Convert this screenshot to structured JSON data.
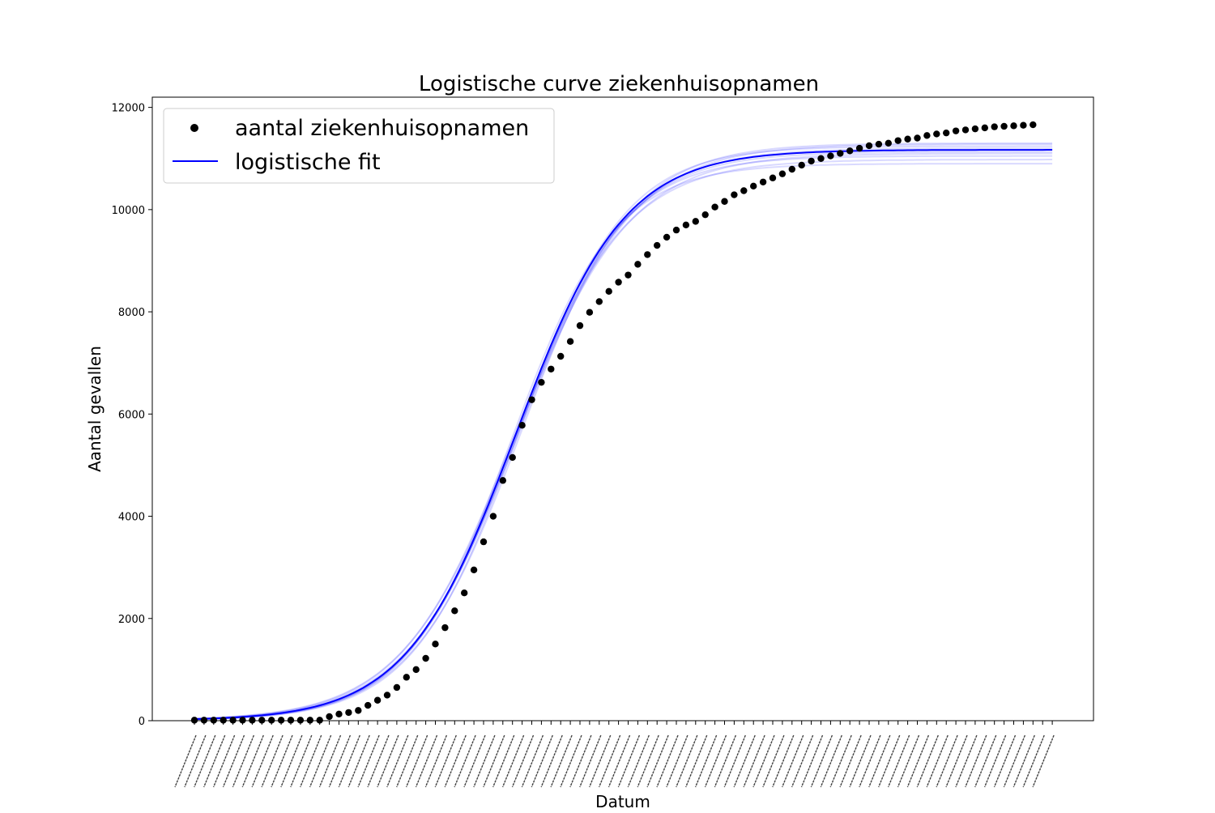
{
  "chart_data": {
    "type": "scatter",
    "title": "Logistische curve ziekenhuisopnamen",
    "xlabel": "Datum",
    "ylabel": "Aantal gevallen",
    "ylim": [
      0,
      12200
    ],
    "yticks": [
      0,
      2000,
      4000,
      6000,
      8000,
      10000,
      12000
    ],
    "x_tick_labels_legible": false,
    "legend": {
      "placement": "upper-left",
      "entries": [
        {
          "label": "aantal ziekenhuisopnamen",
          "marker": "dot",
          "color": "#000000"
        },
        {
          "label": "logistische fit",
          "marker": "line",
          "color": "#0000ff"
        }
      ]
    },
    "series": [
      {
        "name": "aantal ziekenhuisopnamen",
        "kind": "scatter",
        "color": "#000000",
        "x": [
          0,
          1,
          2,
          3,
          4,
          5,
          6,
          7,
          8,
          9,
          10,
          11,
          12,
          13,
          14,
          15,
          16,
          17,
          18,
          19,
          20,
          21,
          22,
          23,
          24,
          25,
          26,
          27,
          28,
          29,
          30,
          31,
          32,
          33,
          34,
          35,
          36,
          37,
          38,
          39,
          40,
          41,
          42,
          43,
          44,
          45,
          46,
          47,
          48,
          49,
          50,
          51,
          52,
          53,
          54,
          55,
          56,
          57,
          58,
          59,
          60,
          61,
          62,
          63,
          64,
          65,
          66,
          67,
          68,
          69,
          70,
          71,
          72,
          73,
          74,
          75,
          76,
          77,
          78,
          79,
          80,
          81,
          82,
          83,
          84,
          85,
          86,
          87
        ],
        "values": [
          10,
          10,
          10,
          10,
          10,
          10,
          10,
          10,
          10,
          10,
          10,
          10,
          10,
          10,
          80,
          130,
          160,
          200,
          300,
          400,
          500,
          650,
          850,
          1000,
          1220,
          1500,
          1820,
          2150,
          2500,
          2950,
          3500,
          4000,
          4700,
          5150,
          5780,
          6280,
          6620,
          6880,
          7130,
          7420,
          7730,
          7990,
          8200,
          8400,
          8580,
          8720,
          8930,
          9120,
          9300,
          9460,
          9600,
          9700,
          9770,
          9900,
          10050,
          10160,
          10290,
          10370,
          10460,
          10540,
          10620,
          10700,
          10790,
          10870,
          10950,
          11000,
          11050,
          11100,
          11150,
          11200,
          11250,
          11280,
          11300,
          11350,
          11380,
          11400,
          11450,
          11480,
          11500,
          11540,
          11560,
          11580,
          11600,
          11620,
          11630,
          11640,
          11650,
          11660
        ]
      },
      {
        "name": "logistische fit",
        "kind": "logistic",
        "color": "#0000ff",
        "K": 11170,
        "midpoint": 33.3,
        "rate": 0.177,
        "x_range": [
          0,
          89
        ]
      }
    ],
    "fit_band": {
      "color": "#0000ff",
      "opacity": 0.15,
      "K": [
        10900,
        10980,
        11050,
        11100,
        11130,
        11200,
        11240,
        11280,
        11300
      ],
      "midpoint": [
        32.8,
        33.0,
        33.2,
        33.3,
        33.4,
        33.5,
        33.6,
        33.7,
        33.9
      ],
      "rate": [
        0.185,
        0.172,
        0.18,
        0.168,
        0.177,
        0.174,
        0.182,
        0.17,
        0.176
      ]
    }
  }
}
